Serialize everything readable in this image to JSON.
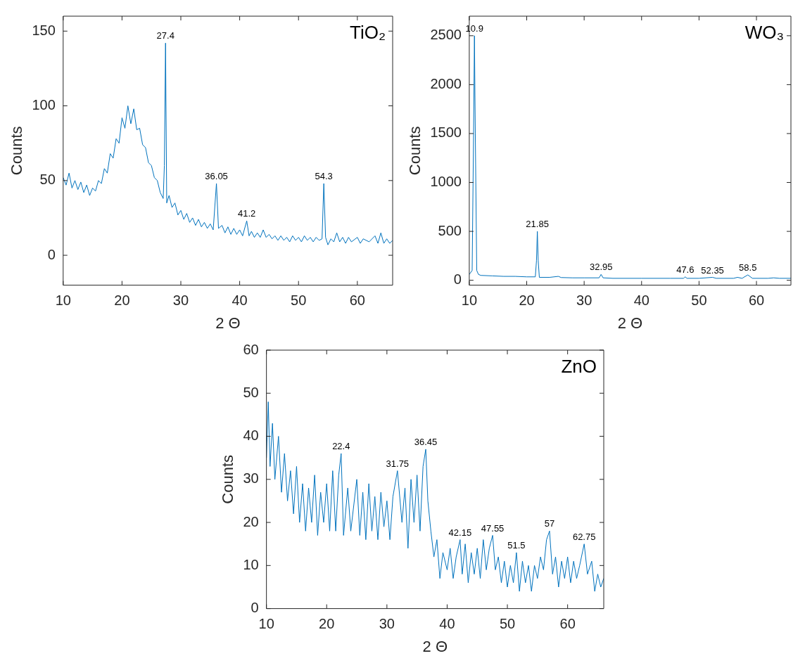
{
  "chart_data": [
    {
      "type": "line",
      "title": "TiO₂",
      "xlabel": "2 Θ",
      "ylabel": "Counts",
      "xlim": [
        10,
        66
      ],
      "xticks": [
        10,
        20,
        30,
        40,
        50,
        60
      ],
      "ylim": [
        -20,
        160
      ],
      "yticks": [
        0,
        50,
        100,
        150
      ],
      "color": "#0072bd",
      "x": [
        10,
        10.5,
        11,
        11.5,
        12,
        12.5,
        13,
        13.5,
        14,
        14.5,
        15,
        15.5,
        16,
        16.5,
        17,
        17.5,
        18,
        18.5,
        19,
        19.5,
        20,
        20.5,
        21,
        21.5,
        22,
        22.5,
        23,
        23.5,
        24,
        24.5,
        25,
        25.5,
        26,
        26.5,
        27,
        27.2,
        27.4,
        27.6,
        28,
        28.5,
        29,
        29.5,
        30,
        30.5,
        31,
        31.5,
        32,
        32.5,
        33,
        33.5,
        34,
        34.5,
        35,
        35.5,
        36.05,
        36.4,
        37,
        37.5,
        38,
        38.5,
        39,
        39.5,
        40,
        40.5,
        41.2,
        41.6,
        42,
        42.5,
        43,
        43.5,
        44,
        44.5,
        45,
        45.5,
        46,
        46.5,
        47,
        47.5,
        48,
        48.5,
        49,
        49.5,
        50,
        50.5,
        51,
        51.5,
        52,
        52.5,
        53,
        53.5,
        54,
        54.3,
        54.6,
        55,
        55.5,
        56,
        56.5,
        57,
        57.5,
        58,
        58.5,
        59,
        60,
        60.5,
        61,
        62,
        63,
        63.5,
        64,
        64.5,
        65,
        65.5,
        66
      ],
      "values": [
        52,
        47,
        55,
        45,
        50,
        44,
        49,
        42,
        47,
        40,
        45,
        43,
        50,
        48,
        58,
        55,
        68,
        65,
        78,
        75,
        92,
        85,
        100,
        88,
        98,
        84,
        85,
        74,
        72,
        62,
        60,
        52,
        50,
        42,
        38,
        60,
        142,
        35,
        40,
        32,
        35,
        27,
        30,
        24,
        28,
        22,
        25,
        20,
        24,
        19,
        22,
        18,
        21,
        17,
        48,
        18,
        20,
        15,
        19,
        14,
        18,
        14,
        17,
        13,
        23,
        13,
        16,
        12,
        15,
        12,
        17,
        12,
        14,
        11,
        13,
        10,
        13,
        10,
        12,
        9,
        13,
        10,
        12,
        9,
        13,
        10,
        12,
        9,
        12,
        10,
        11,
        48,
        12,
        7,
        11,
        9,
        15,
        9,
        12,
        8,
        12,
        9,
        12,
        8,
        11,
        9,
        13,
        8,
        15,
        8,
        11,
        8,
        10
      ],
      "annotations": [
        {
          "text": "27.4",
          "x": 27.4,
          "y": 142
        },
        {
          "text": "36.05",
          "x": 36.05,
          "y": 48
        },
        {
          "text": "41.2",
          "x": 41.2,
          "y": 23
        },
        {
          "text": "54.3",
          "x": 54.3,
          "y": 48
        }
      ]
    },
    {
      "type": "line",
      "title": "WO₃",
      "xlabel": "2 Θ",
      "ylabel": "Counts",
      "xlim": [
        10,
        66
      ],
      "xticks": [
        10,
        20,
        30,
        40,
        50,
        60
      ],
      "ylim": [
        -50,
        2700
      ],
      "yticks": [
        0,
        500,
        1000,
        1500,
        2000,
        2500
      ],
      "color": "#0072bd",
      "x": [
        10,
        10.5,
        10.75,
        10.9,
        11.05,
        11.3,
        11.6,
        12,
        14,
        16,
        18,
        20,
        21.5,
        21.7,
        21.85,
        22,
        22.2,
        24,
        25.5,
        26,
        28,
        30,
        32.6,
        32.95,
        33.3,
        35,
        40,
        45,
        47.3,
        47.6,
        47.9,
        50,
        52.35,
        53,
        56,
        56.7,
        57.5,
        58.5,
        59.3,
        62,
        63,
        64,
        66
      ],
      "values": [
        60,
        100,
        1500,
        2500,
        1500,
        100,
        60,
        50,
        45,
        40,
        40,
        35,
        35,
        200,
        500,
        200,
        30,
        30,
        40,
        28,
        25,
        25,
        25,
        60,
        25,
        20,
        20,
        20,
        20,
        35,
        20,
        20,
        30,
        20,
        20,
        30,
        20,
        55,
        20,
        20,
        25,
        20,
        20
      ],
      "annotations": [
        {
          "text": "10.9",
          "x": 10.9,
          "y": 2500
        },
        {
          "text": "21.85",
          "x": 21.85,
          "y": 500
        },
        {
          "text": "32.95",
          "x": 32.95,
          "y": 60
        },
        {
          "text": "47.6",
          "x": 47.6,
          "y": 35
        },
        {
          "text": "52.35",
          "x": 52.35,
          "y": 30
        },
        {
          "text": "58.5",
          "x": 58.5,
          "y": 55
        }
      ]
    },
    {
      "type": "line",
      "title": "ZnO",
      "xlabel": "2 Θ",
      "ylabel": "Counts",
      "xlim": [
        10,
        66
      ],
      "xticks": [
        10,
        20,
        30,
        40,
        50,
        60
      ],
      "ylim": [
        0,
        60
      ],
      "yticks": [
        0,
        10,
        20,
        30,
        40,
        50,
        60
      ],
      "color": "#0072bd",
      "x": [
        10,
        10.3,
        10.6,
        11,
        11.4,
        12,
        12.5,
        13,
        13.5,
        14,
        14.5,
        15,
        15.5,
        16,
        16.5,
        17,
        17.5,
        18,
        18.5,
        19,
        19.5,
        20,
        20.5,
        21,
        21.5,
        22,
        22.4,
        22.8,
        23.5,
        24,
        25,
        25.5,
        26,
        26.5,
        27,
        27.5,
        28,
        28.5,
        29,
        29.5,
        30,
        30.5,
        31,
        31.75,
        32.5,
        33,
        33.5,
        34,
        34.5,
        35,
        35.5,
        36,
        36.45,
        36.8,
        37.3,
        37.8,
        38.3,
        38.8,
        39.3,
        40,
        40.5,
        41,
        41.5,
        42.15,
        42.5,
        43,
        43.5,
        44,
        44.5,
        45,
        45.5,
        46,
        46.5,
        47,
        47.55,
        48,
        48.5,
        49,
        49.5,
        50,
        50.5,
        51,
        51.5,
        52,
        52.5,
        53,
        53.5,
        54,
        54.5,
        55,
        55.5,
        56,
        56.5,
        57,
        57.5,
        58,
        58.5,
        59,
        59.5,
        60,
        60.5,
        61,
        61.5,
        62,
        62.75,
        63.3,
        64,
        64.5,
        65,
        65.5,
        66
      ],
      "values": [
        35,
        48,
        33,
        43,
        30,
        40,
        27,
        36,
        25,
        32,
        22,
        33,
        20,
        29,
        18,
        28,
        20,
        31,
        17,
        27,
        20,
        29,
        18,
        32,
        18,
        31,
        36,
        17,
        28,
        18,
        30,
        17,
        27,
        16,
        29,
        18,
        26,
        16,
        27,
        19,
        25,
        16,
        26,
        32,
        20,
        28,
        14,
        30,
        20,
        31,
        18,
        33,
        37,
        25,
        18,
        12,
        16,
        7,
        13,
        9,
        14,
        7,
        12,
        16,
        8,
        15,
        6,
        13,
        8,
        14,
        7,
        16,
        9,
        14,
        17,
        9,
        12,
        6,
        11,
        5,
        10,
        6,
        13,
        4,
        11,
        6,
        10,
        4,
        10,
        7,
        12,
        9,
        16,
        18,
        8,
        12,
        5,
        11,
        7,
        12,
        6,
        11,
        7,
        10,
        15,
        8,
        11,
        4,
        8,
        5,
        7
      ],
      "annotations": [
        {
          "text": "22.4",
          "x": 22.4,
          "y": 36
        },
        {
          "text": "31.75",
          "x": 31.75,
          "y": 32
        },
        {
          "text": "36.45",
          "x": 36.45,
          "y": 37
        },
        {
          "text": "42.15",
          "x": 42.15,
          "y": 16
        },
        {
          "text": "47.55",
          "x": 47.55,
          "y": 17
        },
        {
          "text": "51.5",
          "x": 51.5,
          "y": 13
        },
        {
          "text": "57",
          "x": 57,
          "y": 18
        },
        {
          "text": "62.75",
          "x": 62.75,
          "y": 15
        }
      ]
    }
  ]
}
